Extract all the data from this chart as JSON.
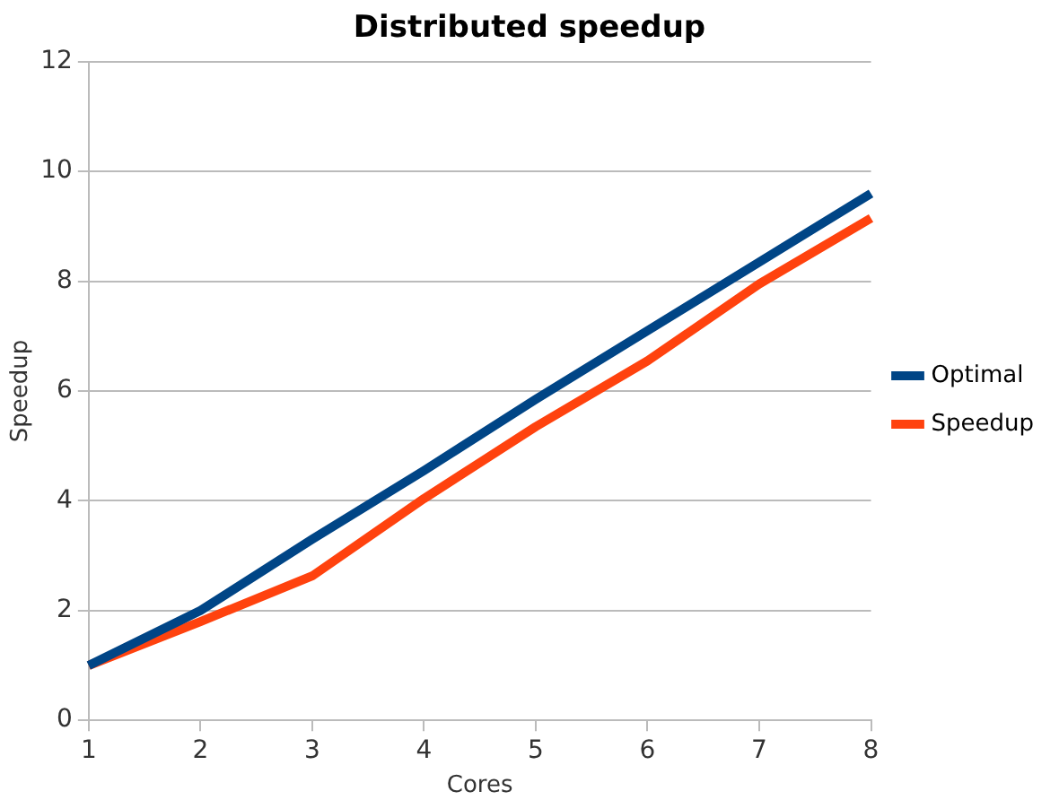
{
  "chart_data": {
    "type": "line",
    "title": "Distributed speedup",
    "xlabel": "Cores",
    "ylabel": "Speedup",
    "categories": [
      "1",
      "2",
      "3",
      "4",
      "5",
      "6",
      "7",
      "8"
    ],
    "series": [
      {
        "name": "Optimal",
        "color": "#004586",
        "values": [
          1,
          2,
          3.3,
          4.55,
          5.85,
          7.1,
          8.35,
          9.6
        ]
      },
      {
        "name": "Speedup",
        "color": "#ff420e",
        "values": [
          1,
          1.8,
          2.63,
          4.04,
          5.35,
          6.55,
          7.95,
          9.15
        ]
      }
    ],
    "ylim": [
      0,
      12
    ],
    "yticks": [
      0,
      2,
      4,
      6,
      8,
      10,
      12
    ],
    "grid": "y",
    "legend": "right",
    "marker": "none",
    "line_style": "solid"
  }
}
